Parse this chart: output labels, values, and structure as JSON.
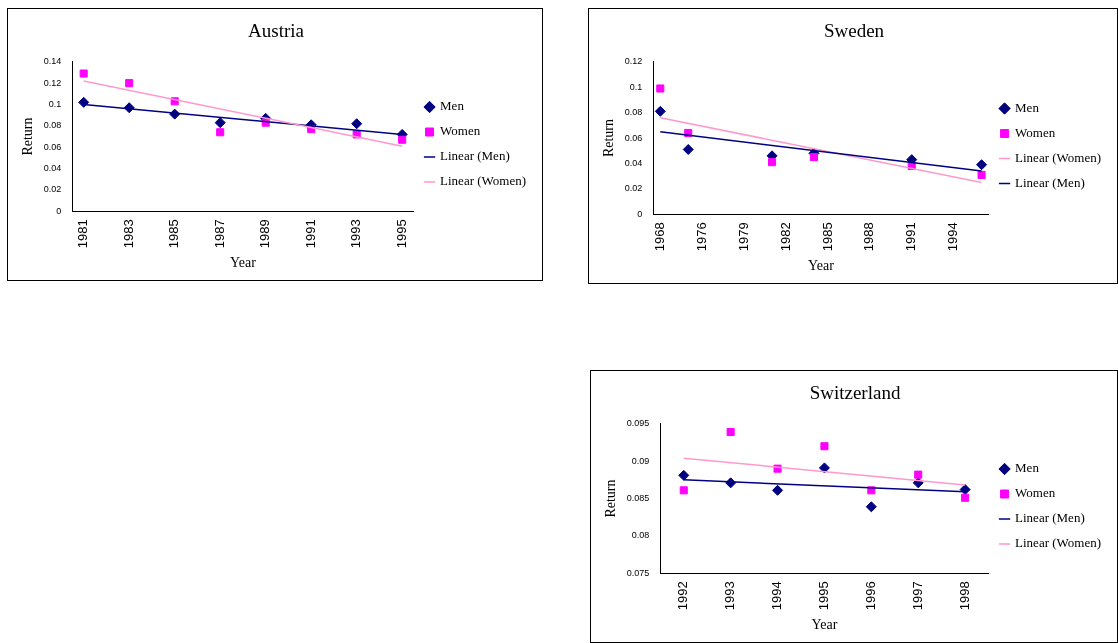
{
  "chart_data": [
    {
      "type": "scatter",
      "title": "Austria",
      "xlabel": "Year",
      "ylabel": "Return",
      "categories": [
        "1981",
        null,
        "1983",
        null,
        "1985",
        null,
        "1987",
        null,
        "1989",
        null,
        "1991",
        null,
        "1993",
        null,
        "1995"
      ],
      "ylim": [
        0,
        0.14
      ],
      "yticks": [
        0,
        0.02,
        0.04,
        0.06,
        0.08,
        0.1,
        0.12,
        0.14
      ],
      "grid": false,
      "legend": "right",
      "series": [
        {
          "name": "Men",
          "type": "scatter",
          "marker": "diamond",
          "color": "#000080",
          "values": [
            0.102,
            null,
            0.097,
            null,
            0.091,
            null,
            0.083,
            null,
            0.087,
            null,
            0.081,
            null,
            0.082,
            null,
            0.072
          ]
        },
        {
          "name": "Women",
          "type": "scatter",
          "marker": "square",
          "color": "#ff00ff",
          "values": [
            0.129,
            null,
            0.12,
            null,
            0.103,
            null,
            0.074,
            null,
            0.083,
            null,
            0.077,
            null,
            0.072,
            null,
            0.067
          ]
        },
        {
          "name": "Linear (Men)",
          "type": "line",
          "color": "#000080",
          "values": [
            0.1,
            null,
            null,
            null,
            null,
            null,
            null,
            null,
            null,
            null,
            null,
            null,
            null,
            null,
            0.072
          ]
        },
        {
          "name": "Linear (Women)",
          "type": "line",
          "color": "#ff99cc",
          "values": [
            0.122,
            null,
            null,
            null,
            null,
            null,
            null,
            null,
            null,
            null,
            null,
            null,
            null,
            null,
            0.061
          ]
        }
      ]
    },
    {
      "type": "scatter",
      "title": "Sweden",
      "xlabel": "Year",
      "ylabel": "Return",
      "categories": [
        "1968",
        null,
        null,
        "1976",
        null,
        null,
        "1979",
        null,
        null,
        "1982",
        null,
        null,
        "1985",
        null,
        null,
        "1988",
        null,
        null,
        "1991",
        null,
        null,
        "1994",
        null,
        null
      ],
      "ylim": [
        0,
        0.12
      ],
      "yticks": [
        0,
        0.02,
        0.04,
        0.06,
        0.08,
        0.1,
        0.12
      ],
      "grid": false,
      "legend": "right",
      "series": [
        {
          "name": "Men",
          "type": "scatter",
          "marker": "diamond",
          "color": "#000080",
          "values": [
            0.081,
            null,
            0.051,
            null,
            null,
            null,
            null,
            null,
            0.046,
            null,
            null,
            0.048,
            null,
            null,
            null,
            null,
            null,
            null,
            0.043,
            null,
            null,
            null,
            null,
            0.039
          ]
        },
        {
          "name": "Women",
          "type": "scatter",
          "marker": "square",
          "color": "#ff00ff",
          "values": [
            0.099,
            null,
            0.064,
            null,
            null,
            null,
            null,
            null,
            0.041,
            null,
            null,
            0.045,
            null,
            null,
            null,
            null,
            null,
            null,
            0.038,
            null,
            null,
            null,
            null,
            0.031
          ]
        },
        {
          "name": "Linear (Women)",
          "type": "line",
          "color": "#ff99cc",
          "values": [
            0.076,
            null,
            null,
            null,
            null,
            null,
            null,
            null,
            null,
            null,
            null,
            null,
            null,
            null,
            null,
            null,
            null,
            null,
            null,
            null,
            null,
            null,
            null,
            0.025
          ]
        },
        {
          "name": "Linear (Men)",
          "type": "line",
          "color": "#000080",
          "values": [
            0.065,
            null,
            null,
            null,
            null,
            null,
            null,
            null,
            null,
            null,
            null,
            null,
            null,
            null,
            null,
            null,
            null,
            null,
            null,
            null,
            null,
            null,
            null,
            0.034
          ]
        }
      ]
    },
    {
      "type": "scatter",
      "title": "Switzerland",
      "xlabel": "Year",
      "ylabel": "Return",
      "categories": [
        "1992",
        "1993",
        "1994",
        "1995",
        "1996",
        "1997",
        "1998"
      ],
      "ylim": [
        0.075,
        0.095
      ],
      "yticks": [
        0.075,
        0.08,
        0.085,
        0.09,
        0.095
      ],
      "grid": false,
      "legend": "right",
      "series": [
        {
          "name": "Men",
          "type": "scatter",
          "marker": "diamond",
          "color": "#000080",
          "values": [
            0.0881,
            0.0871,
            0.0861,
            0.0891,
            0.0839,
            0.0871,
            0.0862
          ]
        },
        {
          "name": "Women",
          "type": "scatter",
          "marker": "square",
          "color": "#ff00ff",
          "values": [
            0.0861,
            0.0939,
            0.089,
            0.092,
            0.0861,
            0.0882,
            0.0851
          ]
        },
        {
          "name": "Linear (Men)",
          "type": "line",
          "color": "#000080",
          "values": [
            0.0875,
            null,
            null,
            null,
            null,
            null,
            0.0859
          ]
        },
        {
          "name": "Linear (Women)",
          "type": "line",
          "color": "#ff99cc",
          "values": [
            0.0904,
            null,
            null,
            null,
            null,
            null,
            0.0868
          ]
        }
      ]
    }
  ]
}
